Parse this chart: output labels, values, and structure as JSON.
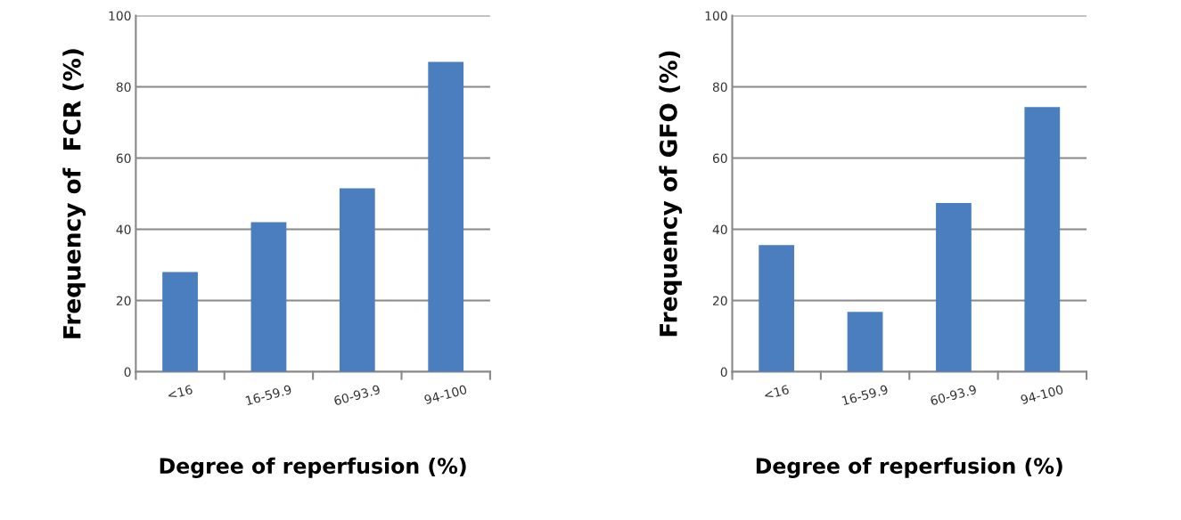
{
  "chart_data": [
    {
      "type": "bar",
      "categories": [
        "<16",
        "16-59.9",
        "60-93.9",
        "94-100"
      ],
      "values": [
        28,
        42,
        51.5,
        87
      ],
      "color": "#4a7ebf",
      "ylabel": "Frequency of  FCR (%)",
      "xlabel": "Degree of reperfusion (%)",
      "ylim": [
        0,
        100
      ],
      "yticks": [
        0,
        20,
        40,
        60,
        80,
        100
      ],
      "grid": "y"
    },
    {
      "type": "bar",
      "categories": [
        "<16",
        "16-59.9",
        "60-93.9",
        "94-100"
      ],
      "values": [
        35.6,
        16.8,
        47.4,
        74.3
      ],
      "color": "#4a7ebf",
      "ylabel": "Frequency of GFO (%)",
      "xlabel": "Degree of reperfusion (%)",
      "ylim": [
        0,
        100
      ],
      "yticks": [
        0,
        20,
        40,
        60,
        80,
        100
      ],
      "grid": "y"
    }
  ]
}
